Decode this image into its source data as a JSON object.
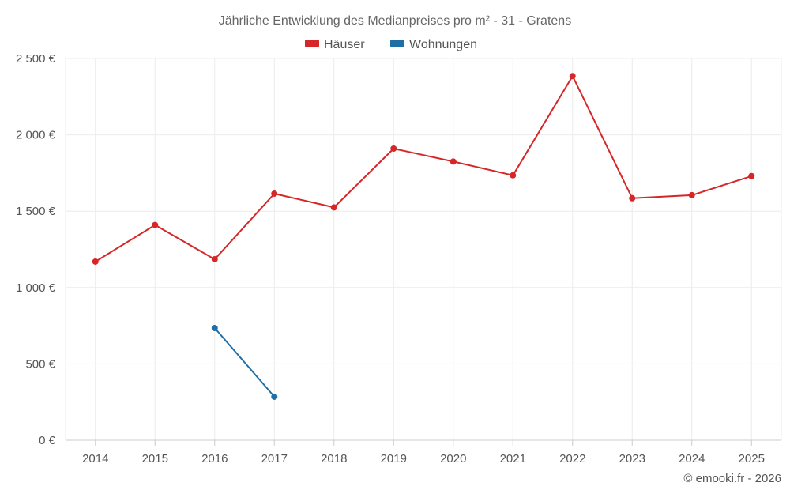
{
  "chart_data": {
    "type": "line",
    "title": "Jährliche Entwicklung des Medianpreises pro m² - 31 - Gratens",
    "categories": [
      "2014",
      "2015",
      "2016",
      "2017",
      "2018",
      "2019",
      "2020",
      "2021",
      "2022",
      "2023",
      "2024",
      "2025"
    ],
    "series": [
      {
        "name": "Häuser",
        "color": "#d62728",
        "values": [
          1170,
          1410,
          1185,
          1615,
          1525,
          1910,
          1825,
          1735,
          2385,
          1585,
          1605,
          1730
        ]
      },
      {
        "name": "Wohnungen",
        "color": "#1f6ea6",
        "values": [
          null,
          null,
          735,
          285,
          null,
          null,
          null,
          null,
          null,
          null,
          null,
          null
        ]
      }
    ],
    "ylim": [
      0,
      2500
    ],
    "yticks": [
      0,
      500,
      1000,
      1500,
      2000,
      2500
    ],
    "ytick_labels": [
      "0 €",
      "500 €",
      "1 000 €",
      "1 500 €",
      "2 000 €",
      "2 500 €"
    ],
    "grid": true,
    "legend_position": "top-center",
    "credit": "© emooki.fr - 2026"
  }
}
